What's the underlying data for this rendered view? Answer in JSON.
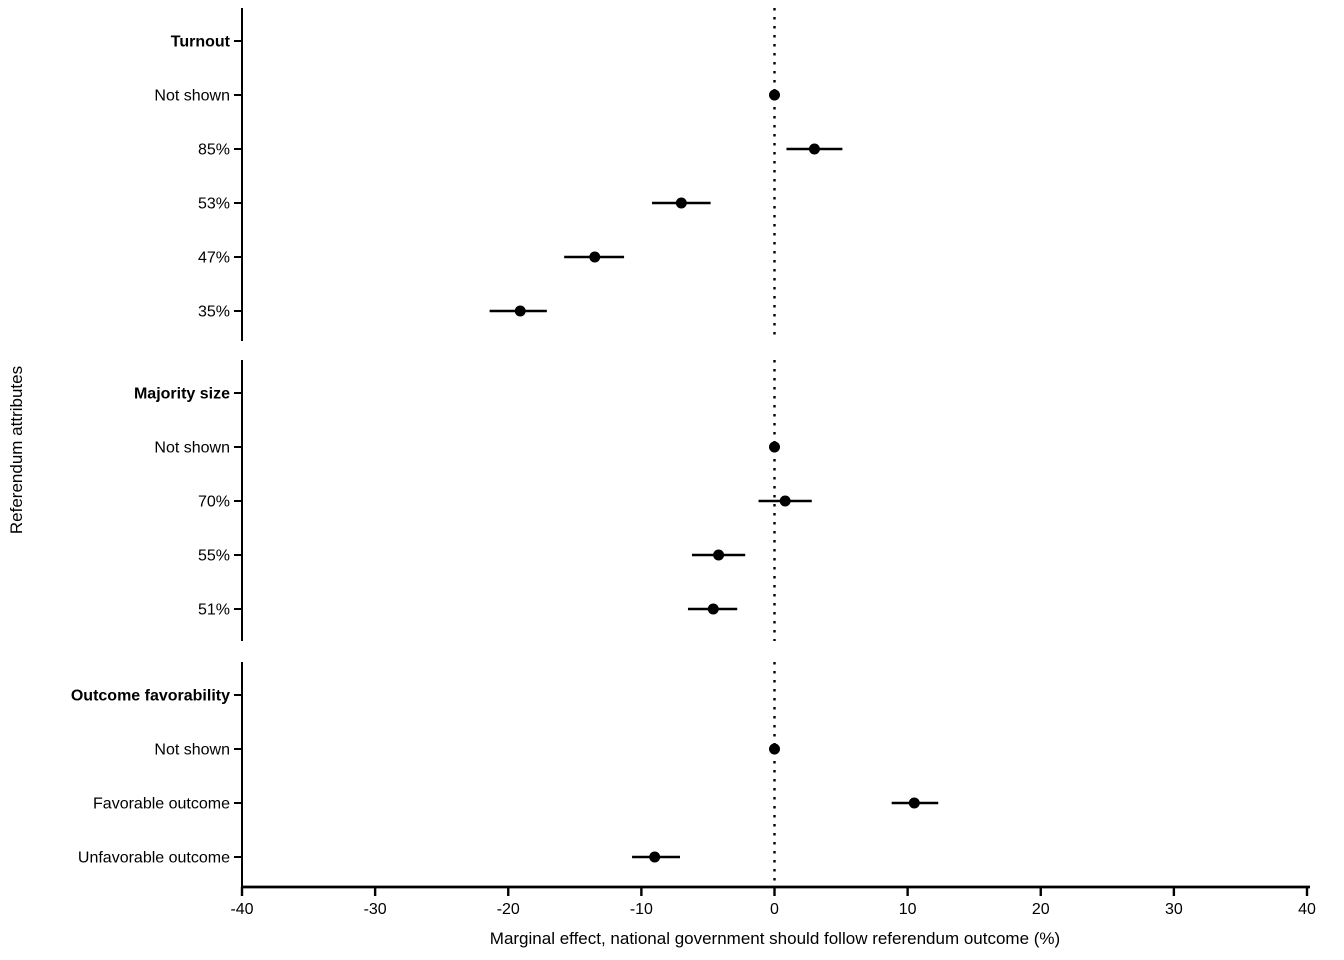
{
  "chart_data": {
    "type": "scatter",
    "subtype": "dot-and-whisker coefficient plot",
    "title": "",
    "xlabel": "Marginal effect, national government should follow referendum outcome (%)",
    "ylabel": "Referendum attributes",
    "xlim": [
      -40,
      40
    ],
    "xticks": [
      -40,
      -30,
      -20,
      -10,
      0,
      10,
      20,
      30,
      40
    ],
    "grid": false,
    "legend": false,
    "reference_line_x": 0,
    "colors": {
      "point": "#000000",
      "ci_line": "#000000",
      "axis": "#000000",
      "zero_line": "#000000",
      "background": "#ffffff"
    },
    "groups": [
      {
        "header": "Turnout",
        "items": [
          {
            "label": "Not shown",
            "estimate": 0,
            "ci_low": 0,
            "ci_high": 0
          },
          {
            "label": "85%",
            "estimate": 3.0,
            "ci_low": 0.9,
            "ci_high": 5.1
          },
          {
            "label": "53%",
            "estimate": -7.0,
            "ci_low": -9.2,
            "ci_high": -4.8
          },
          {
            "label": "47%",
            "estimate": -13.5,
            "ci_low": -15.8,
            "ci_high": -11.3
          },
          {
            "label": "35%",
            "estimate": -19.1,
            "ci_low": -21.4,
            "ci_high": -17.1
          }
        ]
      },
      {
        "header": "Majority size",
        "items": [
          {
            "label": "Not shown",
            "estimate": 0,
            "ci_low": 0,
            "ci_high": 0
          },
          {
            "label": "70%",
            "estimate": 0.8,
            "ci_low": -1.2,
            "ci_high": 2.8
          },
          {
            "label": "55%",
            "estimate": -4.2,
            "ci_low": -6.2,
            "ci_high": -2.2
          },
          {
            "label": "51%",
            "estimate": -4.6,
            "ci_low": -6.5,
            "ci_high": -2.8
          }
        ]
      },
      {
        "header": "Outcome favorability",
        "items": [
          {
            "label": "Not shown",
            "estimate": 0,
            "ci_low": 0,
            "ci_high": 0
          },
          {
            "label": "Favorable outcome",
            "estimate": 10.5,
            "ci_low": 8.8,
            "ci_high": 12.3
          },
          {
            "label": "Unfavorable outcome",
            "estimate": -9.0,
            "ci_low": -10.7,
            "ci_high": -7.1
          }
        ]
      }
    ]
  }
}
